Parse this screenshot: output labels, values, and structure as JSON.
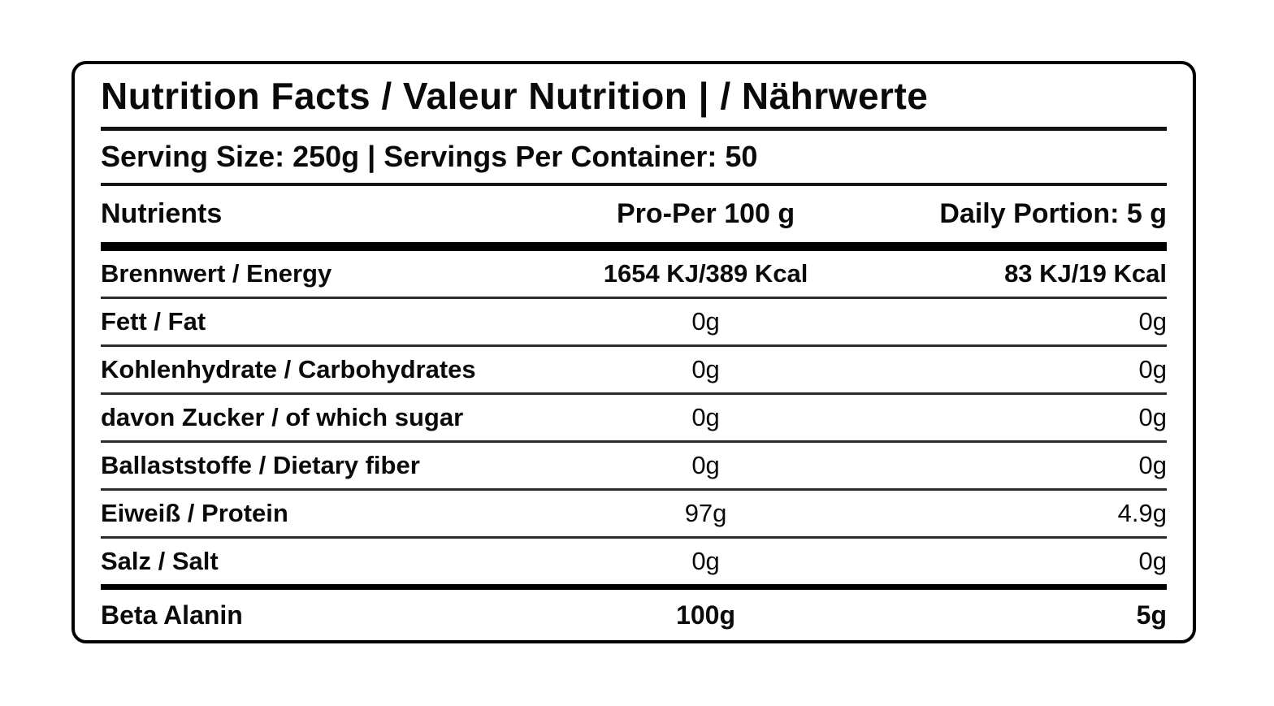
{
  "label": {
    "title": "Nutrition Facts / Valeur Nutrition | / Nährwerte",
    "serving_line": "Serving Size: 250g | Servings Per Container: 50",
    "columns": {
      "nutrient": "Nutrients",
      "per100": "Pro-Per 100 g",
      "daily": "Daily Portion: 5 g"
    },
    "rows": [
      {
        "name": "Brennwert / Energy",
        "per100": "1654 KJ/389 Kcal",
        "daily": "83 KJ/19 Kcal"
      },
      {
        "name": "Fett / Fat",
        "per100": "0g",
        "daily": "0g"
      },
      {
        "name": "Kohlenhydrate / Carbohydrates",
        "per100": "0g",
        "daily": "0g"
      },
      {
        "name": "davon Zucker / of which sugar",
        "per100": "0g",
        "daily": "0g"
      },
      {
        "name": "Ballaststoffe / Dietary fiber",
        "per100": "0g",
        "daily": "0g"
      },
      {
        "name": "Eiweiß / Protein",
        "per100": "97g",
        "daily": "4.9g"
      },
      {
        "name": "Salz / Salt",
        "per100": "0g",
        "daily": "0g"
      }
    ],
    "footer_row": {
      "name": "Beta Alanin",
      "per100": "100g",
      "daily": "5g"
    },
    "colors": {
      "text": "#000000",
      "rule_thin": "#2b2b2b",
      "rule_thick": "#000000",
      "background": "#ffffff"
    }
  }
}
